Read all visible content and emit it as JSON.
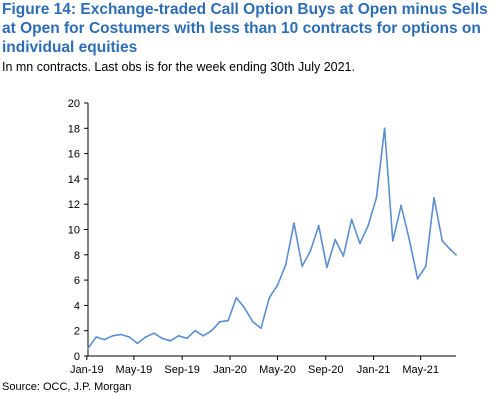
{
  "header": {
    "title": "Figure 14: Exchange-traded Call Option Buys at Open minus Sells at Open for Costumers with less than 10 contracts for options on individual equities",
    "subtitle": "In mn contracts. Last obs is for the week ending 30th July 2021."
  },
  "footer": {
    "source": "Source:  OCC, J.P. Morgan"
  },
  "colors": {
    "title": "#2d6db5",
    "series": "#5b8fd1",
    "axis": "#000000"
  },
  "chart_data": {
    "type": "line",
    "title": "Figure 14: Exchange-traded Call Option Buys at Open minus Sells at Open for Costumers with less than 10 contracts for options on individual equities",
    "xlabel": "",
    "ylabel": "",
    "ylim": [
      0,
      20
    ],
    "yticks": [
      0,
      2,
      4,
      6,
      8,
      10,
      12,
      14,
      16,
      18,
      20
    ],
    "xlim": [
      "2019-01-04",
      "2021-07-30"
    ],
    "xticks": [
      "Jan-19",
      "May-19",
      "Sep-19",
      "Jan-20",
      "May-20",
      "Sep-20",
      "Jan-21",
      "May-21"
    ],
    "xtick_dates": [
      "2019-01-01",
      "2019-05-01",
      "2019-09-01",
      "2020-01-01",
      "2020-05-01",
      "2020-09-01",
      "2021-01-01",
      "2021-05-01"
    ],
    "grid": false,
    "series": [
      {
        "x": [
          "2019-01-04",
          "2019-01-25",
          "2019-02-15",
          "2019-03-08",
          "2019-03-29",
          "2019-04-19",
          "2019-05-10",
          "2019-05-31",
          "2019-06-21",
          "2019-07-12",
          "2019-08-02",
          "2019-08-23",
          "2019-09-13",
          "2019-10-04",
          "2019-10-25",
          "2019-11-15",
          "2019-12-06",
          "2019-12-27",
          "2020-01-17",
          "2020-02-07",
          "2020-02-28",
          "2020-03-20",
          "2020-04-10",
          "2020-05-01",
          "2020-05-22",
          "2020-06-12",
          "2020-07-03",
          "2020-07-24",
          "2020-08-14",
          "2020-09-04",
          "2020-09-25",
          "2020-10-16",
          "2020-11-06",
          "2020-11-27",
          "2020-12-18",
          "2021-01-08",
          "2021-01-29",
          "2021-02-19",
          "2021-03-12",
          "2021-04-02",
          "2021-04-23",
          "2021-05-14",
          "2021-06-04",
          "2021-06-25",
          "2021-07-16",
          "2021-07-30"
        ],
        "values": [
          0.6,
          1.5,
          1.3,
          1.6,
          1.7,
          1.5,
          1.0,
          1.5,
          1.8,
          1.4,
          1.2,
          1.6,
          1.4,
          2.0,
          1.6,
          2.0,
          2.7,
          2.8,
          4.6,
          3.8,
          2.7,
          2.2,
          4.6,
          5.6,
          7.2,
          10.5,
          7.1,
          8.3,
          10.3,
          7.0,
          9.2,
          7.9,
          10.8,
          8.9,
          10.3,
          12.5,
          18.0,
          9.1,
          11.9,
          9.2,
          6.1,
          7.1,
          12.5,
          9.1,
          8.4,
          8.0
        ]
      }
    ]
  }
}
